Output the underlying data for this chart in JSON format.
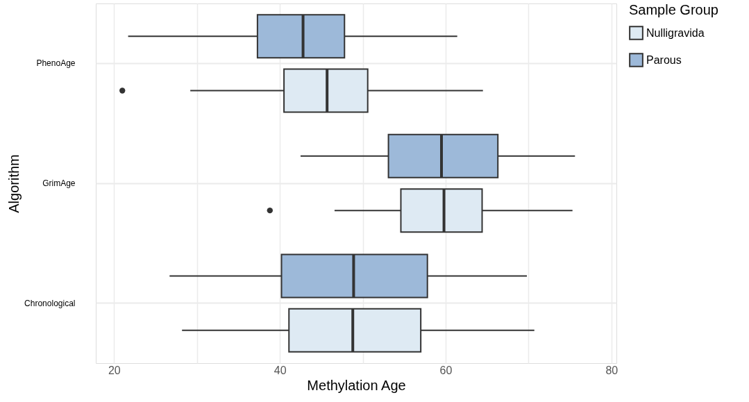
{
  "chart_data": {
    "type": "box",
    "orientation": "horizontal",
    "categories": [
      "PhenoAge",
      "GrimAge",
      "Chronological"
    ],
    "series": [
      {
        "name": "Nulligravida",
        "color": "#deeaf3",
        "boxes": [
          {
            "low": 29.2,
            "q1": 40.5,
            "median": 45.7,
            "q3": 50.6,
            "high": 64.5,
            "outliers": [
              21.0
            ]
          },
          {
            "low": 46.6,
            "q1": 54.6,
            "median": 59.8,
            "q3": 64.4,
            "high": 75.3,
            "outliers": [
              38.8
            ]
          },
          {
            "low": 28.2,
            "q1": 41.1,
            "median": 48.8,
            "q3": 57.0,
            "high": 70.7
          }
        ]
      },
      {
        "name": "Parous",
        "color": "#9db9d9",
        "boxes": [
          {
            "low": 21.7,
            "q1": 37.3,
            "median": 42.8,
            "q3": 47.8,
            "high": 61.4
          },
          {
            "low": 42.5,
            "q1": 53.1,
            "median": 59.5,
            "q3": 66.3,
            "high": 75.6
          },
          {
            "low": 26.7,
            "q1": 40.2,
            "median": 48.9,
            "q3": 57.8,
            "high": 69.8
          }
        ]
      }
    ],
    "xlim": [
      17.8,
      80.6
    ],
    "xticks": [
      20,
      {
        "value": 30,
        "label": null
      },
      40,
      {
        "value": 50,
        "label": null
      },
      60,
      {
        "value": 70,
        "label": null
      },
      80
    ],
    "xlabel": "Methylation Age",
    "ylabel": "Algorithm",
    "legend_title": "Sample Group",
    "legend": "right",
    "grid": true
  }
}
